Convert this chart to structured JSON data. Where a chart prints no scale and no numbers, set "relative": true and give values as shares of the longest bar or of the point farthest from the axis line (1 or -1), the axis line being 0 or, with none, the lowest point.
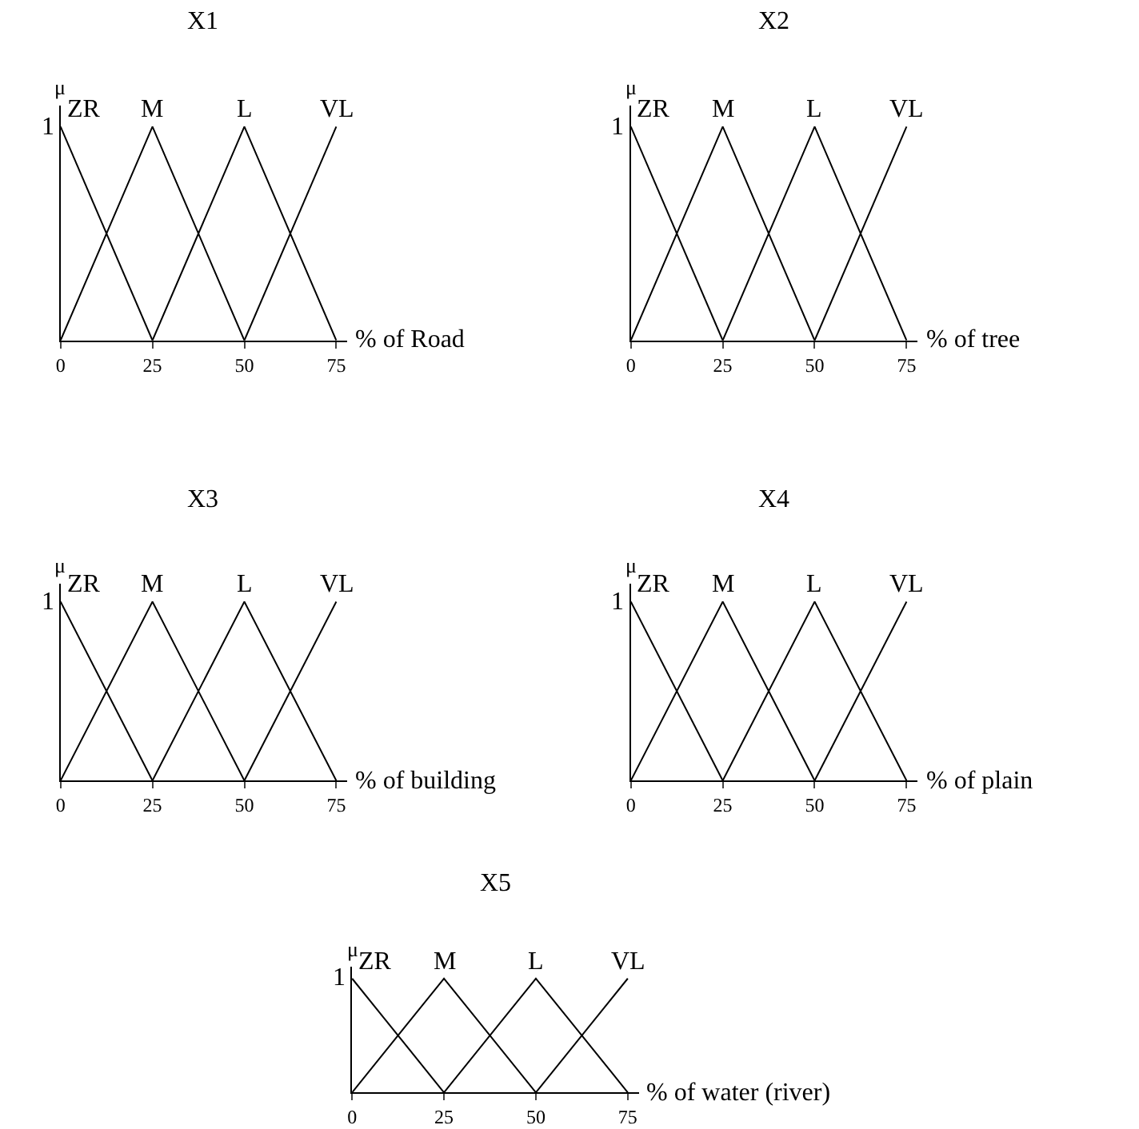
{
  "chart_data": [
    {
      "type": "line",
      "title": "X1",
      "ylabel": "μ",
      "xlabel": "% of Road",
      "x": [
        0,
        25,
        50,
        75
      ],
      "xlim": [
        0,
        78
      ],
      "xticks": [
        0,
        25,
        50,
        75
      ],
      "relative": true,
      "annotations": [
        "1"
      ],
      "marker": "none",
      "line_style": "solid",
      "series": [
        {
          "name": "ZR",
          "color": "#000000",
          "values": [
            1,
            0,
            null,
            null
          ]
        },
        {
          "name": "M",
          "color": "#000000",
          "values": [
            0,
            1,
            0,
            null
          ]
        },
        {
          "name": "L",
          "color": "#000000",
          "values": [
            null,
            0,
            1,
            0
          ]
        },
        {
          "name": "VL",
          "color": "#000000",
          "values": [
            null,
            null,
            0,
            1
          ]
        }
      ]
    },
    {
      "type": "line",
      "title": "X2",
      "ylabel": "μ",
      "xlabel": "% of tree",
      "x": [
        0,
        25,
        50,
        75
      ],
      "xlim": [
        0,
        78
      ],
      "xticks": [
        0,
        25,
        50,
        75
      ],
      "relative": true,
      "annotations": [
        "1"
      ],
      "marker": "none",
      "line_style": "solid",
      "series": [
        {
          "name": "ZR",
          "color": "#000000",
          "values": [
            1,
            0,
            null,
            null
          ]
        },
        {
          "name": "M",
          "color": "#000000",
          "values": [
            0,
            1,
            0,
            null
          ]
        },
        {
          "name": "L",
          "color": "#000000",
          "values": [
            null,
            0,
            1,
            0
          ]
        },
        {
          "name": "VL",
          "color": "#000000",
          "values": [
            null,
            null,
            0,
            1
          ]
        }
      ]
    },
    {
      "type": "line",
      "title": "X3",
      "ylabel": "μ",
      "xlabel": "% of building",
      "x": [
        0,
        25,
        50,
        75
      ],
      "xlim": [
        0,
        78
      ],
      "xticks": [
        0,
        25,
        50,
        75
      ],
      "relative": true,
      "annotations": [
        "1"
      ],
      "marker": "none",
      "line_style": "solid",
      "series": [
        {
          "name": "ZR",
          "color": "#000000",
          "values": [
            1,
            0,
            null,
            null
          ]
        },
        {
          "name": "M",
          "color": "#000000",
          "values": [
            0,
            1,
            0,
            null
          ]
        },
        {
          "name": "L",
          "color": "#000000",
          "values": [
            null,
            0,
            1,
            0
          ]
        },
        {
          "name": "VL",
          "color": "#000000",
          "values": [
            null,
            null,
            0,
            1
          ]
        }
      ]
    },
    {
      "type": "line",
      "title": "X4",
      "ylabel": "μ",
      "xlabel": "% of plain",
      "x": [
        0,
        25,
        50,
        75
      ],
      "xlim": [
        0,
        78
      ],
      "xticks": [
        0,
        25,
        50,
        75
      ],
      "relative": true,
      "annotations": [
        "1"
      ],
      "marker": "none",
      "line_style": "solid",
      "series": [
        {
          "name": "ZR",
          "color": "#000000",
          "values": [
            1,
            0,
            null,
            null
          ]
        },
        {
          "name": "M",
          "color": "#000000",
          "values": [
            0,
            1,
            0,
            null
          ]
        },
        {
          "name": "L",
          "color": "#000000",
          "values": [
            null,
            0,
            1,
            0
          ]
        },
        {
          "name": "VL",
          "color": "#000000",
          "values": [
            null,
            null,
            0,
            1
          ]
        }
      ]
    },
    {
      "type": "line",
      "title": "X5",
      "ylabel": "μ",
      "xlabel": "% of water (river)",
      "x": [
        0,
        25,
        50,
        75
      ],
      "xlim": [
        0,
        78
      ],
      "xticks": [
        0,
        25,
        50,
        75
      ],
      "relative": true,
      "annotations": [
        "1"
      ],
      "marker": "none",
      "line_style": "solid",
      "series": [
        {
          "name": "ZR",
          "color": "#000000",
          "values": [
            1,
            0,
            null,
            null
          ]
        },
        {
          "name": "M",
          "color": "#000000",
          "values": [
            0,
            1,
            0,
            null
          ]
        },
        {
          "name": "L",
          "color": "#000000",
          "values": [
            null,
            0,
            1,
            0
          ]
        },
        {
          "name": "VL",
          "color": "#000000",
          "values": [
            null,
            null,
            0,
            1
          ]
        }
      ]
    }
  ]
}
